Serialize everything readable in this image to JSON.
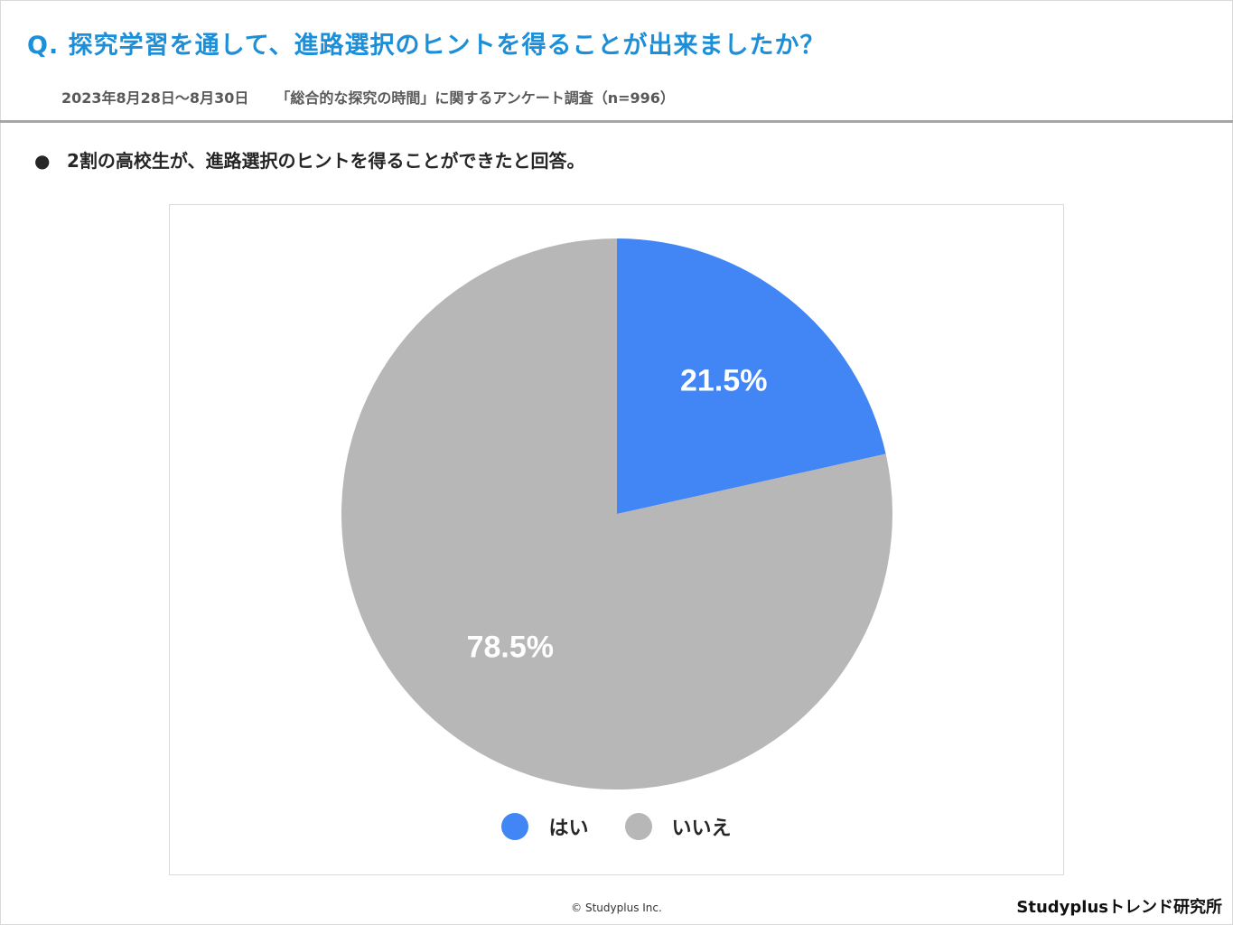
{
  "header": {
    "title": "Q. 探究学習を通して、進路選択のヒントを得ることが出来ましたか？",
    "date_range": "2023年8月28日～8月30日",
    "survey": "「総合的な探究の時間」に関するアンケート調査（n=996）"
  },
  "summary": {
    "bullet": "●",
    "text": "2割の高校生が、進路選択のヒントを得ることができたと回答。"
  },
  "chart_data": {
    "type": "pie",
    "categories": [
      "はい",
      "いいえ"
    ],
    "values": [
      21.5,
      78.5
    ],
    "labels": [
      "21.5%",
      "78.5%"
    ],
    "colors": [
      "#4285f4",
      "#b7b7b7"
    ],
    "legend": "bottom",
    "start": "12 o'clock",
    "direction": "clockwise"
  },
  "footer": {
    "copyright": "© Studyplus Inc.",
    "brand": "Studyplusトレンド研究所"
  }
}
